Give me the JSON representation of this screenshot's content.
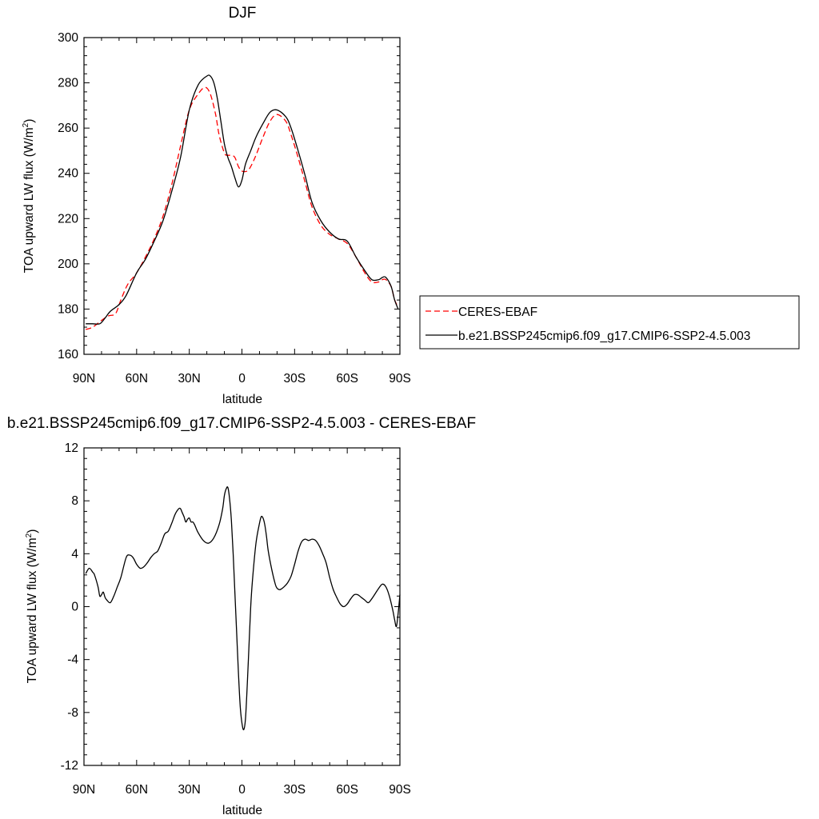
{
  "chart_data": [
    {
      "type": "line",
      "title": "DJF",
      "xlabel": "latitude",
      "ylabel": "TOA upward LW flux (W/m",
      "ylabel_sup": "2",
      "ylabel_close": ")",
      "xlim": [
        90,
        -90
      ],
      "ylim": [
        160,
        300
      ],
      "xticks": [
        {
          "value": 90,
          "label": "90N"
        },
        {
          "value": 60,
          "label": "60N"
        },
        {
          "value": 30,
          "label": "30N"
        },
        {
          "value": 0,
          "label": "0"
        },
        {
          "value": -30,
          "label": "30S"
        },
        {
          "value": -60,
          "label": "60S"
        },
        {
          "value": -90,
          "label": "90S"
        }
      ],
      "yticks": [
        160,
        180,
        200,
        220,
        240,
        260,
        280,
        300
      ],
      "grid": false,
      "legend": "outside-right",
      "series": [
        {
          "name": "CERES-EBAF",
          "color": "#ff0000",
          "dash": "dashed",
          "x": [
            89,
            85,
            80,
            76,
            72,
            69,
            65,
            60,
            55,
            50,
            45,
            40,
            35,
            30,
            25,
            21,
            18,
            15,
            13,
            10,
            8,
            6,
            4,
            2,
            0,
            -3,
            -5,
            -8,
            -12,
            -16,
            -20,
            -25,
            -28,
            -32,
            -36,
            -40,
            -45,
            -50,
            -55,
            -60,
            -65,
            -70,
            -74,
            -78,
            -80,
            -82,
            -85,
            -87,
            -89
          ],
          "y": [
            171,
            172,
            175,
            177,
            178,
            184,
            191,
            196,
            203,
            211,
            221,
            235,
            252,
            268,
            275,
            278,
            275,
            266,
            257,
            249,
            248,
            248,
            247,
            243,
            241,
            241,
            243,
            248,
            256,
            263,
            266,
            263,
            257,
            247,
            236,
            225,
            217,
            213,
            211,
            209,
            203,
            196,
            192,
            192,
            193,
            193,
            190,
            184,
            181
          ]
        },
        {
          "name": "b.e21.BSSP245cmip6.f09_g17.CMIP6-SSP2-4.5.003",
          "color": "#000000",
          "dash": "solid",
          "x": [
            89,
            85,
            81,
            78,
            75,
            70,
            66,
            60,
            55,
            50,
            45,
            40,
            35,
            30,
            25,
            20,
            18,
            16,
            14,
            12,
            10,
            8,
            6,
            4,
            2,
            0,
            -2,
            -5,
            -8,
            -12,
            -16,
            -20,
            -25,
            -28,
            -32,
            -36,
            -40,
            -45,
            -50,
            -55,
            -60,
            -65,
            -70,
            -74,
            -78,
            -80,
            -82,
            -85,
            -87,
            -89
          ],
          "y": [
            173.5,
            173.5,
            173.5,
            176,
            179,
            182,
            186,
            196,
            202,
            210,
            219,
            232,
            247,
            268,
            279,
            283,
            283,
            280,
            273,
            263,
            253,
            247,
            243,
            238,
            234,
            237,
            244,
            250,
            256,
            262,
            267,
            268,
            265,
            260,
            250,
            239,
            227,
            219,
            214,
            211,
            210,
            203,
            197,
            193,
            193,
            194,
            194,
            190,
            184,
            180
          ]
        }
      ]
    },
    {
      "type": "line",
      "title": "b.e21.BSSP245cmip6.f09_g17.CMIP6-SSP2-4.5.003 - CERES-EBAF",
      "xlabel": "latitude",
      "ylabel": "TOA upward LW flux (W/m",
      "ylabel_sup": "2",
      "ylabel_close": ")",
      "xlim": [
        90,
        -90
      ],
      "ylim": [
        -12,
        12
      ],
      "xticks": [
        {
          "value": 90,
          "label": "90N"
        },
        {
          "value": 60,
          "label": "60N"
        },
        {
          "value": 30,
          "label": "30N"
        },
        {
          "value": 0,
          "label": "0"
        },
        {
          "value": -30,
          "label": "30S"
        },
        {
          "value": -60,
          "label": "60S"
        },
        {
          "value": -90,
          "label": "90S"
        }
      ],
      "yticks": [
        -12,
        -8,
        -4,
        0,
        4,
        8,
        12
      ],
      "grid": false,
      "series": [
        {
          "color": "#000000",
          "dash": "solid",
          "x": [
            89,
            87,
            85,
            84,
            82,
            81,
            80,
            79,
            78,
            77,
            75,
            73,
            71,
            69,
            66,
            64,
            62,
            60,
            58,
            56,
            54,
            52,
            50,
            48,
            46,
            44,
            42,
            40,
            38,
            36,
            35,
            34,
            33,
            32,
            31,
            30,
            29,
            28,
            27,
            25,
            22,
            19,
            16,
            13,
            11,
            10,
            9,
            8,
            7,
            6,
            5,
            4,
            3,
            2,
            1,
            0,
            -1,
            -2,
            -3,
            -4,
            -5,
            -6,
            -8,
            -10,
            -11,
            -12,
            -13,
            -14,
            -15,
            -17,
            -19,
            -20,
            -21,
            -22,
            -24,
            -26,
            -28,
            -30,
            -32,
            -34,
            -36,
            -38,
            -40,
            -42,
            -44,
            -46,
            -48,
            -50,
            -52,
            -54,
            -56,
            -58,
            -60,
            -62,
            -64,
            -66,
            -68,
            -70,
            -72,
            -74,
            -76,
            -78,
            -80,
            -82,
            -84,
            -86,
            -87,
            -88,
            -89,
            -90
          ],
          "y": [
            2.5,
            2.9,
            2.6,
            2.4,
            1.5,
            0.8,
            0.9,
            1.1,
            0.7,
            0.5,
            0.3,
            0.8,
            1.5,
            2.2,
            3.7,
            3.9,
            3.7,
            3.2,
            2.9,
            3.0,
            3.3,
            3.7,
            4.0,
            4.2,
            4.8,
            5.5,
            5.7,
            6.3,
            7.0,
            7.4,
            7.4,
            7.1,
            6.8,
            6.4,
            6.6,
            6.7,
            6.4,
            6.4,
            6.2,
            5.6,
            5.0,
            4.8,
            5.2,
            6.2,
            7.4,
            8.4,
            8.9,
            9.0,
            8.1,
            6.5,
            4.0,
            1.0,
            -2.0,
            -5.0,
            -7.5,
            -8.8,
            -9.3,
            -8.5,
            -6.0,
            -3.0,
            0.0,
            2.0,
            4.8,
            6.3,
            6.8,
            6.7,
            6.2,
            5.3,
            4.2,
            2.8,
            1.7,
            1.4,
            1.3,
            1.3,
            1.5,
            1.8,
            2.3,
            3.2,
            4.2,
            4.9,
            5.1,
            5.0,
            5.1,
            5.0,
            4.6,
            4.0,
            3.3,
            2.2,
            1.3,
            0.7,
            0.2,
            0.0,
            0.2,
            0.6,
            0.9,
            0.9,
            0.7,
            0.5,
            0.3,
            0.6,
            1.0,
            1.4,
            1.7,
            1.5,
            0.8,
            -0.3,
            -1.0,
            -1.5,
            -0.5,
            0.9
          ]
        }
      ]
    }
  ]
}
